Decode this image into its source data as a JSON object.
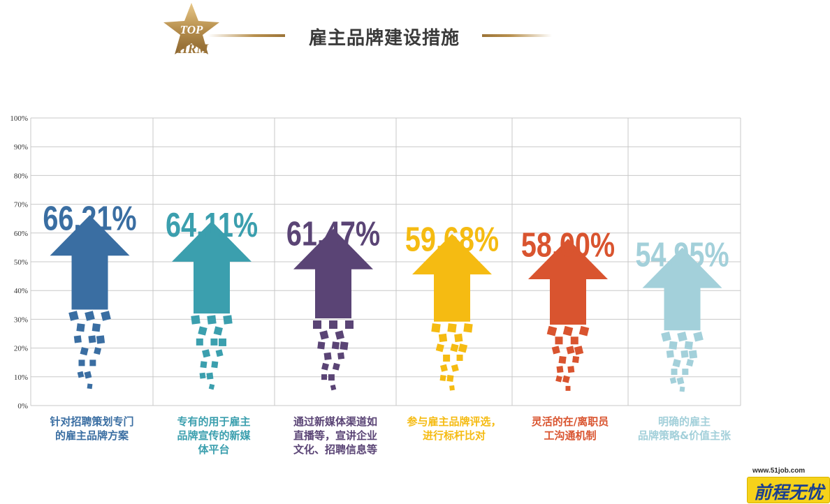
{
  "header": {
    "title": "雇主品牌建设措施",
    "logo": {
      "line1": "TOP",
      "line2": "HRM"
    }
  },
  "colors": {
    "gold": "#b8904e",
    "grid": "#c8c8c8"
  },
  "chart_data": {
    "type": "bar",
    "title": "雇主品牌建设措施",
    "categories": [
      "针对招聘策划专门的雇主品牌方案",
      "专有的用于雇主品牌宣传的新媒体平台",
      "通过新媒体渠道如直播等，宣讲企业文化、招聘信息等",
      "参与雇主品牌评选，进行标杆比对",
      "灵活的在/离职员工沟通机制",
      "明确的雇主品牌策略&价值主张"
    ],
    "category_label_lines": [
      [
        "针对招聘策划专门",
        "的雇主品牌方案"
      ],
      [
        "专有的用于雇主",
        "品牌宣传的新媒",
        "体平台"
      ],
      [
        "通过新媒体渠道如",
        "直播等，宣讲企业",
        "文化、招聘信息等"
      ],
      [
        "参与雇主品牌评选，",
        "进行标杆比对"
      ],
      [
        "灵活的在/离职员",
        "工沟通机制"
      ],
      [
        "明确的雇主",
        "品牌策略&价值主张"
      ]
    ],
    "values": [
      66.21,
      64.11,
      61.47,
      59.68,
      58.0,
      54.95
    ],
    "value_labels": [
      "66.21%",
      "64.11%",
      "61.47%",
      "59.68%",
      "58.00%",
      "54.95%"
    ],
    "colors": [
      "#3a6ea2",
      "#3b9fae",
      "#5a4475",
      "#f5bb12",
      "#d9542f",
      "#a3d0da"
    ],
    "yticks": [
      "0%",
      "10%",
      "20%",
      "30%",
      "40%",
      "50%",
      "60%",
      "70%",
      "80%",
      "90%",
      "100%"
    ],
    "ylim": [
      0,
      100
    ],
    "grid": true,
    "mark": "arrow"
  },
  "brand": {
    "url": "www.51job.com",
    "name": "前程无忧"
  }
}
